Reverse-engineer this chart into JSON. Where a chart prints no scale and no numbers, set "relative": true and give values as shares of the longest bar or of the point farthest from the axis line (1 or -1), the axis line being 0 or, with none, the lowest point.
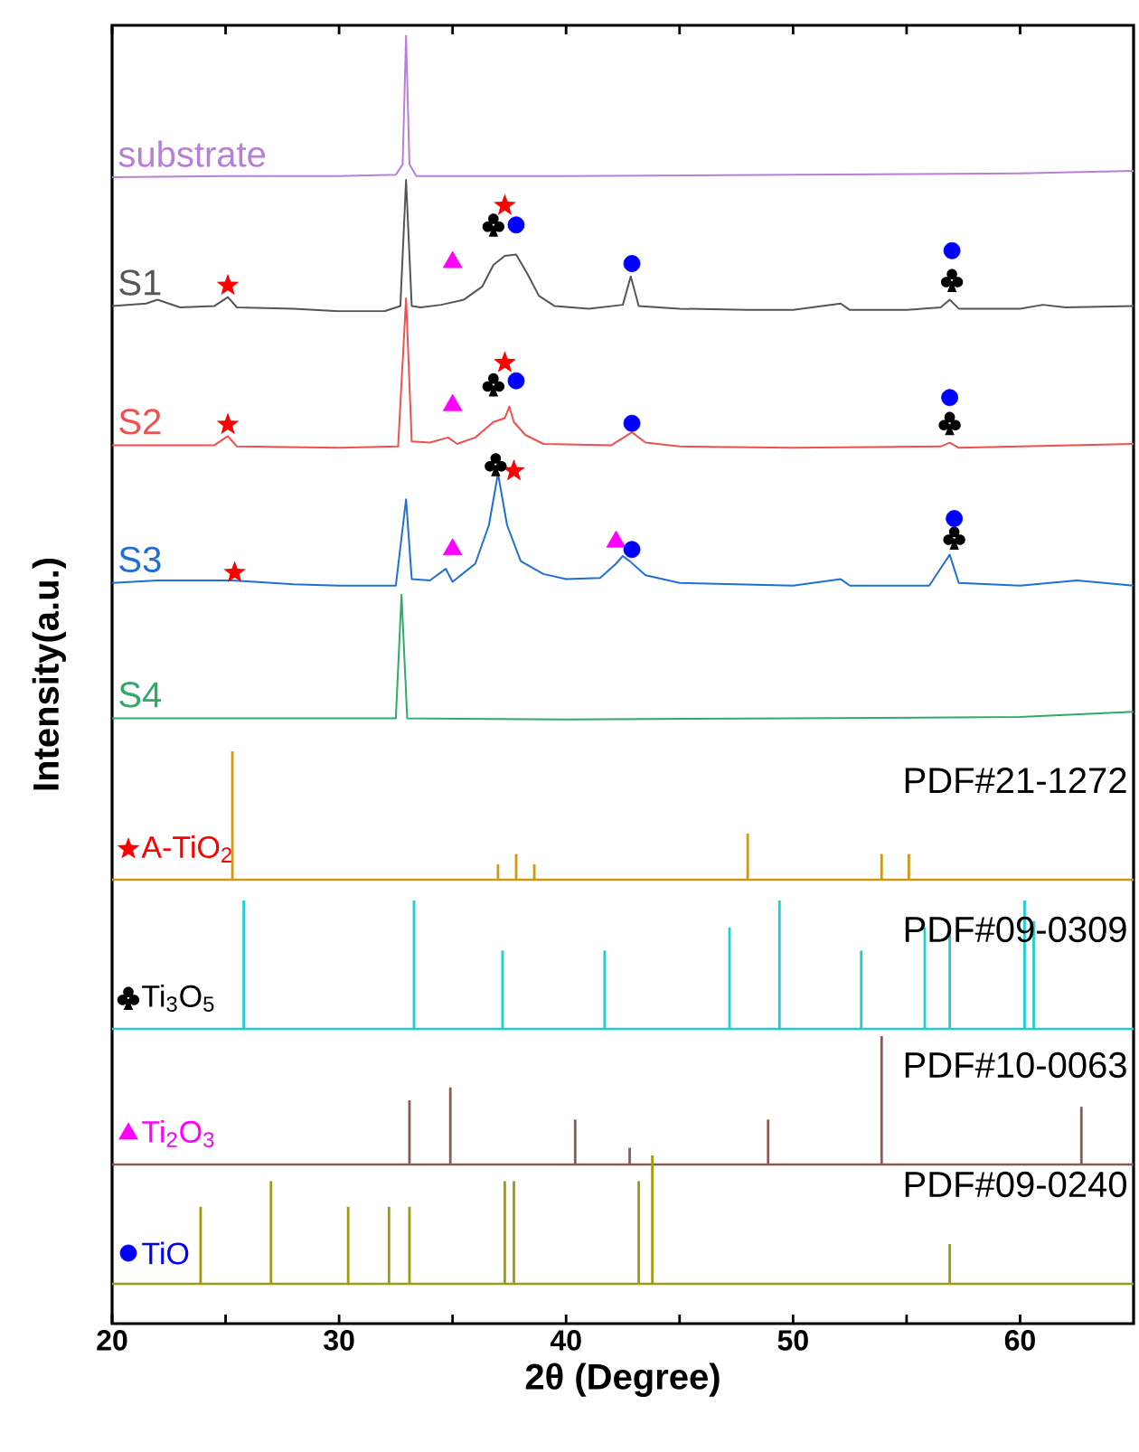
{
  "chart_data": [
    {
      "type": "line",
      "relative": true,
      "xlabel": "2θ (Degree)",
      "ylabel": "Intensity(a.u.)",
      "legend": "bottom left",
      "xlim": [
        20,
        65
      ],
      "xticks": [
        20,
        {
          "value": 25,
          "label": null
        },
        30,
        {
          "value": 35,
          "label": null
        },
        40,
        {
          "value": 45,
          "label": null
        },
        50,
        {
          "value": 55,
          "label": null
        },
        60
      ],
      "series": [
        {
          "name": "substrate",
          "color": "#b87fd8",
          "x": [
            20,
            25,
            30,
            32.5,
            32.8,
            32.95,
            33.1,
            33.4,
            40,
            50,
            60,
            65
          ],
          "values": [
            0.89,
            0.891,
            0.891,
            0.892,
            0.9,
            1.0,
            0.9,
            0.891,
            0.891,
            0.892,
            0.893,
            0.895
          ]
        },
        {
          "name": "S1",
          "color": "#555555",
          "x": [
            20,
            21.5,
            22,
            23,
            24.5,
            25.1,
            25.5,
            28,
            30,
            32,
            32.7,
            32.95,
            33.2,
            33.6,
            34.5,
            35.5,
            36.3,
            36.8,
            37.3,
            37.8,
            38.3,
            38.8,
            39.5,
            41,
            42.5,
            42.85,
            43.2,
            45,
            48,
            50,
            52.1,
            52.5,
            55,
            56.5,
            56.9,
            57.3,
            60,
            61,
            62,
            65
          ],
          "values": [
            0.79,
            0.792,
            0.795,
            0.789,
            0.79,
            0.797,
            0.789,
            0.788,
            0.786,
            0.786,
            0.79,
            0.888,
            0.79,
            0.789,
            0.791,
            0.795,
            0.805,
            0.822,
            0.829,
            0.83,
            0.815,
            0.798,
            0.79,
            0.788,
            0.791,
            0.813,
            0.79,
            0.788,
            0.787,
            0.787,
            0.792,
            0.787,
            0.787,
            0.789,
            0.795,
            0.788,
            0.788,
            0.791,
            0.789,
            0.79
          ]
        },
        {
          "name": "S2",
          "color": "#f05050",
          "x": [
            20,
            24.5,
            25.1,
            25.5,
            30,
            32.6,
            32.95,
            33.2,
            34,
            34.8,
            35.2,
            36,
            36.8,
            37.3,
            37.5,
            37.7,
            38.2,
            39,
            42,
            42.9,
            43.5,
            45,
            50,
            56.5,
            56.9,
            57.3,
            60,
            65
          ],
          "values": [
            0.682,
            0.682,
            0.689,
            0.681,
            0.68,
            0.681,
            0.796,
            0.685,
            0.684,
            0.688,
            0.683,
            0.688,
            0.7,
            0.703,
            0.712,
            0.7,
            0.69,
            0.683,
            0.682,
            0.692,
            0.684,
            0.681,
            0.68,
            0.681,
            0.684,
            0.68,
            0.681,
            0.683
          ]
        },
        {
          "name": "S3",
          "color": "#1f6fd6",
          "x": [
            20,
            22,
            25.3,
            28,
            30,
            32.5,
            32.95,
            33.2,
            34,
            34.7,
            35,
            36,
            36.6,
            37.0,
            37.4,
            38,
            39,
            40,
            41.5,
            42.2,
            42.5,
            42.8,
            43.5,
            45,
            50,
            52.1,
            52.5,
            56,
            56.9,
            57.3,
            60,
            62.5,
            65
          ],
          "values": [
            0.575,
            0.577,
            0.577,
            0.574,
            0.573,
            0.573,
            0.64,
            0.578,
            0.577,
            0.586,
            0.576,
            0.59,
            0.62,
            0.66,
            0.62,
            0.592,
            0.582,
            0.578,
            0.579,
            0.59,
            0.596,
            0.592,
            0.581,
            0.575,
            0.573,
            0.578,
            0.573,
            0.573,
            0.597,
            0.575,
            0.573,
            0.577,
            0.573
          ]
        },
        {
          "name": "S4",
          "color": "#2eaa6a",
          "x": [
            20,
            30,
            32.5,
            32.75,
            33.0,
            40,
            50,
            60,
            65
          ],
          "values": [
            0.47,
            0.47,
            0.47,
            0.566,
            0.47,
            0.469,
            0.47,
            0.471,
            0.475
          ]
        },
        {
          "name": "A-TiO$_{2}$",
          "type": "scatter",
          "marker": "star",
          "color": "#ff0000",
          "x": [
            25.1,
            37.3,
            25.1,
            37.3,
            25.4,
            37.7
          ],
          "values": [
            0.806,
            0.868,
            0.698,
            0.746,
            0.583,
            0.662
          ]
        },
        {
          "name": "Ti$_{3}$O$_{5}$",
          "type": "scatter",
          "color": "#000000",
          "x": [
            36.8,
            57.0,
            36.8,
            56.9,
            36.9,
            57.1
          ],
          "values": [
            0.853,
            0.81,
            0.729,
            0.699,
            0.667,
            0.61
          ]
        },
        {
          "name": "Ti$_{2}$O$_{3}$",
          "type": "scatter",
          "marker": "triangle",
          "color": "#ff00ff",
          "x": [
            35.0,
            35.0,
            35.0,
            42.2
          ],
          "values": [
            0.824,
            0.713,
            0.601,
            0.607
          ]
        },
        {
          "name": "TiO",
          "type": "scatter",
          "marker": "circle",
          "color": "#0000ff",
          "x": [
            37.8,
            42.9,
            57.0,
            37.8,
            42.9,
            56.9,
            42.9,
            57.1
          ],
          "values": [
            0.853,
            0.823,
            0.833,
            0.732,
            0.699,
            0.719,
            0.601,
            0.625
          ]
        }
      ]
    },
    {
      "type": "bar",
      "relative": true,
      "tick_labels": false,
      "xlim": [
        20,
        65
      ],
      "series": [
        {
          "name": "PDF#21-1272",
          "color": "#d09a10",
          "x": [
            25.3,
            37.0,
            37.8,
            38.6,
            48.0,
            53.9,
            55.1
          ],
          "values": [
            1,
            0.12,
            0.2,
            0.12,
            0.36,
            0.2,
            0.2
          ]
        }
      ]
    },
    {
      "type": "bar",
      "relative": true,
      "tick_labels": false,
      "xlim": [
        20,
        65
      ],
      "series": [
        {
          "name": "PDF#09-0309",
          "color": "#1fcfcf",
          "x": [
            25.8,
            33.3,
            37.2,
            41.7,
            47.2,
            49.4,
            53.0,
            55.8,
            56.9,
            60.2,
            60.6
          ],
          "values": [
            1,
            1,
            0.61,
            0.61,
            0.79,
            1,
            0.61,
            0.79,
            0.79,
            1,
            0.84
          ]
        }
      ]
    },
    {
      "type": "bar",
      "relative": true,
      "tick_labels": false,
      "xlim": [
        20,
        65
      ],
      "series": [
        {
          "name": "PDF#10-0063",
          "color": "#8b5a5a",
          "x": [
            33.1,
            34.9,
            40.4,
            42.8,
            48.9,
            53.9,
            62.7
          ],
          "values": [
            0.5,
            0.6,
            0.35,
            0.13,
            0.35,
            1,
            0.45
          ]
        }
      ]
    },
    {
      "type": "bar",
      "relative": true,
      "tick_labels": false,
      "xlim": [
        20,
        65
      ],
      "series": [
        {
          "name": "PDF#09-0240",
          "color": "#9c9c10",
          "x": [
            23.9,
            27.0,
            30.4,
            32.2,
            33.1,
            37.3,
            37.7,
            43.2,
            43.8,
            56.9
          ],
          "values": [
            0.6,
            0.8,
            0.6,
            0.6,
            0.6,
            0.8,
            0.8,
            0.8,
            1,
            0.31
          ]
        }
      ]
    }
  ]
}
